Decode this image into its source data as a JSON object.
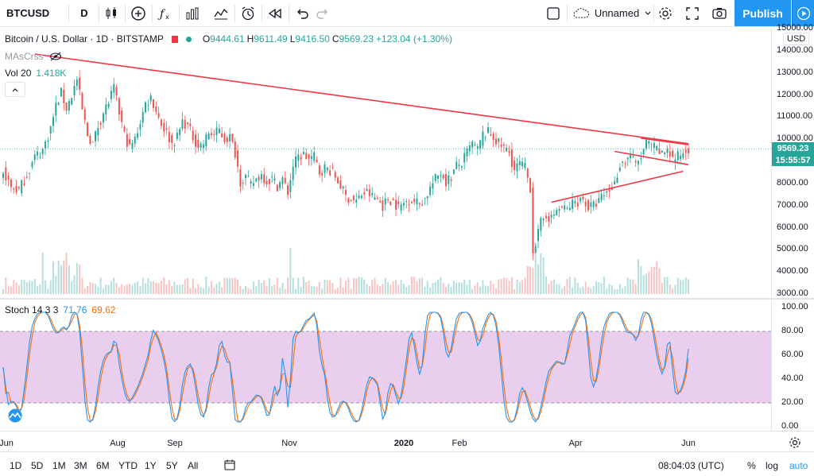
{
  "toolbar": {
    "symbol": "BTCUSD",
    "interval": "D",
    "layout_name": "Unnamed",
    "publish_label": "Publish"
  },
  "legend": {
    "title": "Bitcoin / U.S. Dollar · 1D · BITSTAMP",
    "open_label": "O",
    "open": "9444.61",
    "high_label": "H",
    "high": "9611.49",
    "low_label": "L",
    "low": "9416.50",
    "close_label": "C",
    "close": "9569.23",
    "change": "+123.04 (+1.30%)",
    "ma_label": "MAsCrss",
    "vol_label": "Vol 20",
    "vol_value": "1.418K",
    "stoch_label": "Stoch 14 3 3",
    "stoch_k": "71.76",
    "stoch_d": "69.62"
  },
  "price_axis": {
    "currency": "USD",
    "ticks": [
      "15000.00",
      "14000.00",
      "13000.00",
      "12000.00",
      "11000.00",
      "10000.00",
      "9000.00",
      "8000.00",
      "7000.00",
      "6000.00",
      "5000.00",
      "4000.00",
      "3000.00"
    ],
    "current_price": "9569.23",
    "countdown": "15:55:57"
  },
  "stoch_axis": {
    "ticks": [
      "100.00",
      "80.00",
      "60.00",
      "40.00",
      "20.00",
      "0.00"
    ]
  },
  "time_axis": {
    "labels": [
      {
        "text": "Jun",
        "bold": false
      },
      {
        "text": "Aug",
        "bold": false
      },
      {
        "text": "Sep",
        "bold": false
      },
      {
        "text": "Nov",
        "bold": false
      },
      {
        "text": "2020",
        "bold": true
      },
      {
        "text": "Feb",
        "bold": false
      },
      {
        "text": "Apr",
        "bold": false
      },
      {
        "text": "Jun",
        "bold": false
      }
    ]
  },
  "bottom_bar": {
    "ranges": [
      "1D",
      "5D",
      "1M",
      "3M",
      "6M",
      "YTD",
      "1Y",
      "5Y",
      "All"
    ],
    "clock": "08:04:03 (UTC)",
    "percent": "%",
    "log": "log",
    "auto": "auto"
  },
  "colors": {
    "up": "#26a69a",
    "down": "#ef5350",
    "trendline": "#f23645",
    "stoch_k": "#2196f3",
    "stoch_d": "#ff6d00",
    "stoch_band": "#e1bee7"
  },
  "chart_data": {
    "type": "candlestick",
    "ylim": [
      3000,
      15000
    ],
    "price_path": [
      [
        0,
        8600
      ],
      [
        3,
        7800
      ],
      [
        6,
        7700
      ],
      [
        9,
        8400
      ],
      [
        12,
        9200
      ],
      [
        15,
        9500
      ],
      [
        18,
        10500
      ],
      [
        20,
        11500
      ],
      [
        22,
        12100
      ],
      [
        24,
        11400
      ],
      [
        26,
        12000
      ],
      [
        28,
        12700
      ],
      [
        30,
        11300
      ],
      [
        32,
        10200
      ],
      [
        34,
        9800
      ],
      [
        36,
        10600
      ],
      [
        38,
        11200
      ],
      [
        40,
        11700
      ],
      [
        42,
        12300
      ],
      [
        44,
        11200
      ],
      [
        46,
        10200
      ],
      [
        48,
        9600
      ],
      [
        50,
        10000
      ],
      [
        52,
        10800
      ],
      [
        54,
        11600
      ],
      [
        56,
        11900
      ],
      [
        58,
        11300
      ],
      [
        60,
        10700
      ],
      [
        62,
        10300
      ],
      [
        64,
        9800
      ],
      [
        66,
        10100
      ],
      [
        68,
        10800
      ],
      [
        70,
        10600
      ],
      [
        72,
        10100
      ],
      [
        74,
        9700
      ],
      [
        76,
        9800
      ],
      [
        78,
        10300
      ],
      [
        80,
        10200
      ],
      [
        82,
        10400
      ],
      [
        84,
        10000
      ],
      [
        86,
        10100
      ],
      [
        88,
        9400
      ],
      [
        90,
        8100
      ],
      [
        92,
        8300
      ],
      [
        94,
        7900
      ],
      [
        96,
        8200
      ],
      [
        98,
        8400
      ],
      [
        100,
        8100
      ],
      [
        102,
        8200
      ],
      [
        104,
        7900
      ],
      [
        106,
        8200
      ],
      [
        108,
        7600
      ],
      [
        110,
        8800
      ],
      [
        112,
        9200
      ],
      [
        114,
        9300
      ],
      [
        116,
        9100
      ],
      [
        118,
        9200
      ],
      [
        120,
        8500
      ],
      [
        122,
        8700
      ],
      [
        124,
        8600
      ],
      [
        126,
        8300
      ],
      [
        128,
        7900
      ],
      [
        130,
        7400
      ],
      [
        132,
        7300
      ],
      [
        134,
        7200
      ],
      [
        136,
        7500
      ],
      [
        138,
        7600
      ],
      [
        140,
        7400
      ],
      [
        142,
        7300
      ],
      [
        144,
        7000
      ],
      [
        146,
        7300
      ],
      [
        148,
        7200
      ],
      [
        150,
        6900
      ],
      [
        152,
        7100
      ],
      [
        154,
        7300
      ],
      [
        156,
        7200
      ],
      [
        158,
        7100
      ],
      [
        160,
        7300
      ],
      [
        162,
        7800
      ],
      [
        164,
        8200
      ],
      [
        166,
        8500
      ],
      [
        168,
        8100
      ],
      [
        170,
        8300
      ],
      [
        172,
        8800
      ],
      [
        174,
        8900
      ],
      [
        176,
        9400
      ],
      [
        178,
        9800
      ],
      [
        180,
        9500
      ],
      [
        182,
        10200
      ],
      [
        184,
        10300
      ],
      [
        186,
        10100
      ],
      [
        188,
        9800
      ],
      [
        190,
        9600
      ],
      [
        192,
        9400
      ],
      [
        194,
        8600
      ],
      [
        196,
        8900
      ],
      [
        198,
        8700
      ],
      [
        200,
        7800
      ],
      [
        201,
        5000
      ],
      [
        202,
        5300
      ],
      [
        204,
        6200
      ],
      [
        206,
        6600
      ],
      [
        208,
        6400
      ],
      [
        210,
        6800
      ],
      [
        212,
        6900
      ],
      [
        214,
        6800
      ],
      [
        216,
        7100
      ],
      [
        218,
        7200
      ],
      [
        220,
        7300
      ],
      [
        222,
        6900
      ],
      [
        224,
        7000
      ],
      [
        226,
        7200
      ],
      [
        228,
        7500
      ],
      [
        230,
        7700
      ],
      [
        232,
        8000
      ],
      [
        234,
        8900
      ],
      [
        236,
        9000
      ],
      [
        238,
        9300
      ],
      [
        240,
        8800
      ],
      [
        242,
        9200
      ],
      [
        244,
        9800
      ],
      [
        246,
        9700
      ],
      [
        248,
        9500
      ],
      [
        250,
        9300
      ],
      [
        252,
        9600
      ],
      [
        254,
        9100
      ],
      [
        256,
        9200
      ],
      [
        258,
        9400
      ],
      [
        260,
        9600
      ]
    ],
    "trendlines": [
      {
        "from": [
          12,
          13850
        ],
        "to": [
          260,
          9800
        ]
      },
      {
        "from": [
          208,
          7150
        ],
        "to": [
          258,
          8550
        ]
      },
      {
        "from": [
          242,
          10050
        ],
        "to": [
          260,
          9750
        ]
      },
      {
        "from": [
          232,
          9450
        ],
        "to": [
          260,
          8850
        ]
      }
    ],
    "stoch_ylim": [
      0,
      100
    ],
    "stoch_upper": 80,
    "stoch_lower": 20
  }
}
